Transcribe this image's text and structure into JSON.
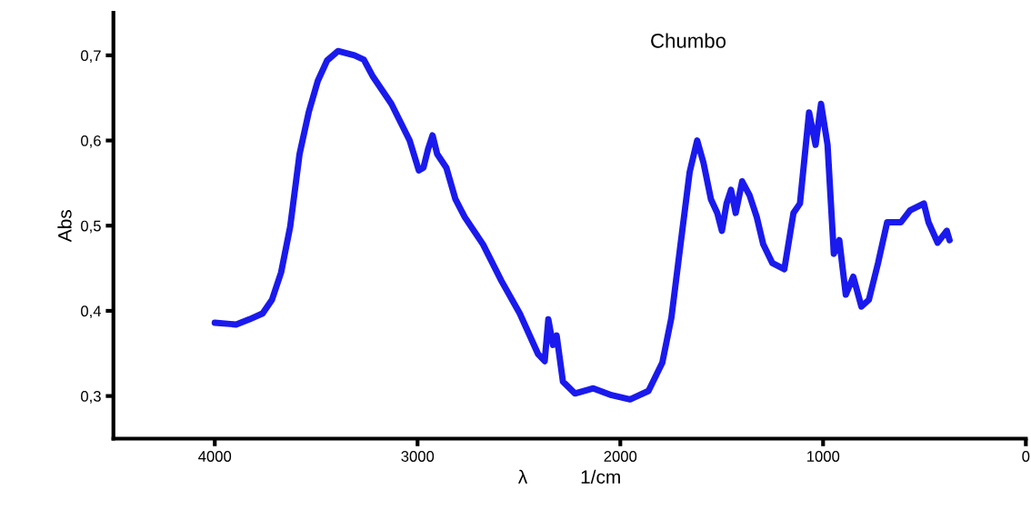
{
  "chart_data": {
    "type": "line",
    "title": "Chumbo",
    "xlabel": "λ          1/cm",
    "ylabel": "Abs",
    "xlim": [
      4500,
      0
    ],
    "xticks": [
      4000,
      3000,
      2000,
      1000,
      0
    ],
    "ylim": [
      0.25,
      0.75
    ],
    "yticks": [
      {
        "value": 0.3,
        "label": "0,3"
      },
      {
        "value": 0.4,
        "label": "0,4"
      },
      {
        "value": 0.5,
        "label": "0,5"
      },
      {
        "value": 0.6,
        "label": "0,6"
      },
      {
        "value": 0.7,
        "label": "0,7"
      }
    ],
    "grid": false,
    "legend": false,
    "marker": "none",
    "line_style": "solid",
    "series": [
      {
        "color": "#1a1aee",
        "x": [
          4000,
          3895,
          3830,
          3764,
          3718,
          3673,
          3628,
          3582,
          3537,
          3492,
          3446,
          3392,
          3311,
          3265,
          3220,
          3129,
          3039,
          2994,
          2971,
          2948,
          2926,
          2903,
          2858,
          2813,
          2767,
          2677,
          2586,
          2496,
          2405,
          2373,
          2355,
          2332,
          2314,
          2283,
          2224,
          2133,
          2043,
          1952,
          1861,
          1793,
          1748,
          1703,
          1658,
          1621,
          1590,
          1553,
          1522,
          1499,
          1476,
          1454,
          1431,
          1399,
          1363,
          1327,
          1295,
          1250,
          1191,
          1146,
          1114,
          1069,
          1037,
          1010,
          978,
          947,
          920,
          888,
          851,
          811,
          774,
          729,
          684,
          616,
          571,
          503,
          480,
          435,
          390,
          376
        ],
        "values": [
          0.386,
          0.384,
          0.39,
          0.397,
          0.413,
          0.445,
          0.499,
          0.584,
          0.633,
          0.67,
          0.694,
          0.705,
          0.7,
          0.695,
          0.675,
          0.643,
          0.6,
          0.565,
          0.568,
          0.59,
          0.606,
          0.584,
          0.568,
          0.531,
          0.51,
          0.478,
          0.435,
          0.397,
          0.349,
          0.341,
          0.39,
          0.36,
          0.371,
          0.317,
          0.303,
          0.309,
          0.301,
          0.296,
          0.306,
          0.339,
          0.392,
          0.478,
          0.563,
          0.6,
          0.574,
          0.531,
          0.515,
          0.494,
          0.526,
          0.542,
          0.515,
          0.552,
          0.536,
          0.51,
          0.478,
          0.456,
          0.449,
          0.515,
          0.526,
          0.633,
          0.595,
          0.643,
          0.595,
          0.467,
          0.483,
          0.419,
          0.44,
          0.405,
          0.413,
          0.456,
          0.504,
          0.504,
          0.518,
          0.526,
          0.504,
          0.48,
          0.494,
          0.483
        ]
      }
    ]
  }
}
